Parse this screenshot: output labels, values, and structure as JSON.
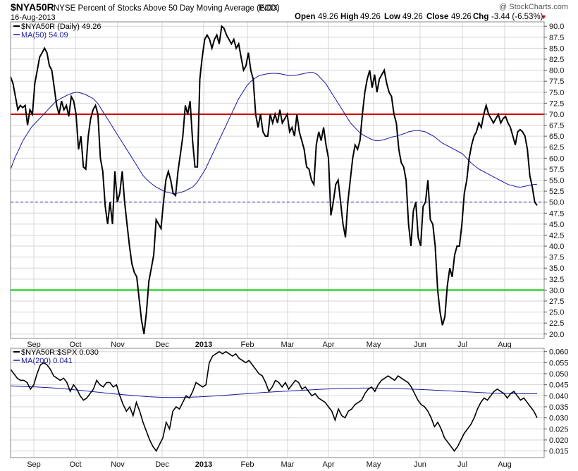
{
  "header": {
    "symbol": "$NYA50R",
    "description": "NYSE Percent of Stocks Above 50 Day Moving Average (EOD)",
    "exchange": "INDX",
    "date": "16-Aug-2013",
    "attribution": "@ StockCharts.com",
    "open_label": "Open",
    "open": "49.26",
    "high_label": "High",
    "high": "49.26",
    "low_label": "Low",
    "low": "49.26",
    "close_label": "Close",
    "close": "49.26",
    "chg_label": "Chg",
    "chg": "-3.44 (-6.53%)",
    "chg_arrow": "▼"
  },
  "colors": {
    "price": "#000000",
    "ma": "#1a1aa0",
    "overbought": "#d10000",
    "oversold": "#00cc00",
    "midline": "#1a1aa0",
    "grid": "#d6d6d6",
    "down": "#d10000"
  },
  "chart_data": [
    {
      "type": "line",
      "panel": "upper",
      "legend": [
        {
          "name": "$NYA50R (Daily) 49.26",
          "color": "#000000"
        },
        {
          "name": "MA(50) 54.09",
          "color": "#1a1aa0"
        }
      ],
      "xlabels": [
        "Sep",
        "Oct",
        "Nov",
        "Dec",
        "2013",
        "Feb",
        "Mar",
        "Apr",
        "May",
        "Jun",
        "Jul",
        "Aug"
      ],
      "ylim": [
        19,
        91
      ],
      "yticks": [
        20.0,
        22.5,
        25.0,
        27.5,
        30.0,
        32.5,
        35.0,
        37.5,
        40.0,
        42.5,
        45.0,
        47.5,
        50.0,
        52.5,
        55.0,
        57.5,
        60.0,
        62.5,
        65.0,
        67.5,
        70.0,
        72.5,
        75.0,
        77.5,
        80.0,
        82.5,
        85.0,
        87.5,
        90.0
      ],
      "hlines": [
        70,
        50,
        30
      ],
      "series": [
        {
          "role": "price",
          "values": [
            78.5,
            77,
            74,
            71,
            72,
            71.5,
            72,
            67.5,
            71,
            70,
            77,
            80,
            83,
            84,
            85,
            84,
            81,
            80,
            76,
            72,
            70,
            73,
            71,
            72,
            69.5,
            74,
            73,
            70,
            62,
            65,
            58,
            57.5,
            65,
            69,
            71,
            72,
            70,
            60,
            57,
            49,
            45,
            50,
            45,
            57,
            50,
            52,
            57,
            50,
            45,
            40,
            36,
            34,
            33,
            28,
            23,
            20,
            25,
            32,
            35,
            38,
            46,
            45,
            44,
            50,
            55,
            57,
            55,
            52,
            51.5,
            57,
            61,
            65,
            72,
            70,
            73,
            64,
            58,
            58,
            78,
            83,
            87,
            88,
            87,
            85,
            87,
            88,
            86,
            90,
            89.5,
            88,
            87,
            86,
            87,
            85,
            86,
            83,
            80,
            81,
            84,
            80,
            78,
            70,
            67,
            70,
            66,
            65,
            65,
            70,
            68,
            70,
            68,
            71,
            68,
            69,
            70,
            66,
            67,
            65,
            70,
            66,
            64,
            62,
            58,
            57.5,
            55,
            54,
            63,
            66,
            64,
            67,
            63,
            60,
            47,
            50,
            54,
            55,
            50,
            45,
            42,
            50,
            55,
            60,
            63,
            62,
            64,
            70,
            75,
            78,
            80,
            76,
            79,
            75,
            78,
            79,
            80,
            77,
            75,
            74,
            70,
            68,
            62,
            59,
            58,
            55,
            45,
            40,
            48,
            50,
            42,
            40,
            49,
            50,
            55,
            46,
            45,
            40,
            30,
            25,
            22,
            24,
            31,
            35,
            33,
            38,
            40,
            40,
            45,
            52,
            55,
            60,
            63,
            65,
            66,
            68,
            67,
            70,
            72,
            70,
            69,
            68,
            69,
            70,
            68,
            69,
            69.5,
            68,
            67,
            65,
            63,
            66,
            66.5,
            66,
            65,
            62,
            56,
            53.5,
            50,
            49.26
          ]
        },
        {
          "role": "ma",
          "values": [
            57.5,
            60,
            62,
            64,
            65.5,
            67,
            68,
            69,
            70,
            71,
            72,
            73,
            73.5,
            74,
            74.5,
            74.8,
            75,
            74.8,
            74.5,
            74,
            73.5,
            72.5,
            71,
            69.5,
            68,
            66.5,
            65,
            63.5,
            62,
            60.5,
            59,
            57.5,
            56,
            55,
            54.2,
            53.5,
            53,
            52.5,
            52.2,
            52,
            52,
            52.2,
            52.5,
            53,
            53.5,
            54.5,
            56,
            57.5,
            59.5,
            61.5,
            63.5,
            65.5,
            67.5,
            69.5,
            71.5,
            73.5,
            75,
            76.5,
            77.5,
            78.2,
            78.8,
            79,
            79.2,
            79.3,
            79.3,
            79.2,
            79,
            78.8,
            78.8,
            78.9,
            79.1,
            79.3,
            79.5,
            79.5,
            79,
            78,
            77,
            75.5,
            74,
            72.5,
            71,
            69.5,
            68,
            67,
            66,
            65.3,
            64.8,
            64.3,
            64,
            64,
            64.2,
            64.5,
            64.8,
            65,
            65.3,
            65.6,
            66,
            66.2,
            66.3,
            66.2,
            66,
            65.5,
            65,
            64.3,
            63.5,
            63,
            62.5,
            62,
            61.5,
            61,
            60,
            59,
            58.2,
            57.5,
            57,
            56.5,
            56,
            55.5,
            55,
            54.5,
            54,
            53.8,
            53.5,
            53.4,
            53.6,
            53.8,
            54,
            54.09
          ]
        }
      ]
    },
    {
      "type": "line",
      "panel": "lower",
      "legend": [
        {
          "name": "$NYA50R:$SPX 0.030",
          "color": "#000000"
        },
        {
          "name": "MA(200) 0.041",
          "color": "#1a1aa0"
        }
      ],
      "xlabels": [
        "Sep",
        "Oct",
        "Nov",
        "Dec",
        "2013",
        "Feb",
        "Mar",
        "Apr",
        "May",
        "Jun",
        "Jul",
        "Aug"
      ],
      "ylim": [
        0.012,
        0.0615
      ],
      "yticks": [
        0.015,
        0.02,
        0.025,
        0.03,
        0.035,
        0.04,
        0.045,
        0.05,
        0.055,
        0.06
      ],
      "series": [
        {
          "role": "ratio",
          "values": [
            0.052,
            0.05,
            0.048,
            0.047,
            0.047,
            0.046,
            0.043,
            0.045,
            0.05,
            0.054,
            0.055,
            0.054,
            0.052,
            0.049,
            0.048,
            0.047,
            0.048,
            0.046,
            0.042,
            0.045,
            0.043,
            0.04,
            0.038,
            0.039,
            0.041,
            0.043,
            0.047,
            0.045,
            0.044,
            0.046,
            0.046,
            0.044,
            0.045,
            0.04,
            0.036,
            0.033,
            0.035,
            0.031,
            0.037,
            0.033,
            0.028,
            0.024,
            0.02,
            0.017,
            0.015,
            0.018,
            0.021,
            0.028,
            0.025,
            0.033,
            0.035,
            0.034,
            0.037,
            0.04,
            0.039,
            0.042,
            0.046,
            0.045,
            0.044,
            0.045,
            0.055,
            0.058,
            0.059,
            0.06,
            0.059,
            0.06,
            0.059,
            0.058,
            0.059,
            0.057,
            0.056,
            0.055,
            0.056,
            0.054,
            0.052,
            0.05,
            0.049,
            0.046,
            0.042,
            0.044,
            0.047,
            0.046,
            0.044,
            0.046,
            0.043,
            0.045,
            0.047,
            0.046,
            0.043,
            0.044,
            0.042,
            0.04,
            0.041,
            0.039,
            0.038,
            0.037,
            0.035,
            0.033,
            0.029,
            0.034,
            0.031,
            0.03,
            0.033,
            0.034,
            0.036,
            0.037,
            0.038,
            0.041,
            0.043,
            0.044,
            0.042,
            0.045,
            0.047,
            0.048,
            0.049,
            0.048,
            0.047,
            0.049,
            0.048,
            0.047,
            0.046,
            0.044,
            0.041,
            0.038,
            0.036,
            0.035,
            0.033,
            0.03,
            0.026,
            0.028,
            0.025,
            0.021,
            0.019,
            0.017,
            0.015,
            0.017,
            0.02,
            0.023,
            0.025,
            0.027,
            0.03,
            0.034,
            0.037,
            0.039,
            0.038,
            0.04,
            0.042,
            0.043,
            0.042,
            0.041,
            0.039,
            0.041,
            0.042,
            0.04,
            0.038,
            0.039,
            0.037,
            0.035,
            0.033,
            0.03
          ]
        },
        {
          "role": "ma",
          "values": [
            0.0445,
            0.0442,
            0.044,
            0.0437,
            0.0433,
            0.0428,
            0.0422,
            0.0416,
            0.041,
            0.0405,
            0.04,
            0.0396,
            0.0393,
            0.0392,
            0.0393,
            0.0395,
            0.0398,
            0.0402,
            0.0406,
            0.041,
            0.0414,
            0.0418,
            0.0421,
            0.0424,
            0.0427,
            0.043,
            0.0432,
            0.0434,
            0.0435,
            0.0435,
            0.0434,
            0.0432,
            0.043,
            0.0428,
            0.0425,
            0.0422,
            0.0419,
            0.0416,
            0.0413,
            0.0411,
            0.041,
            0.0409,
            0.0409
          ]
        }
      ]
    }
  ]
}
